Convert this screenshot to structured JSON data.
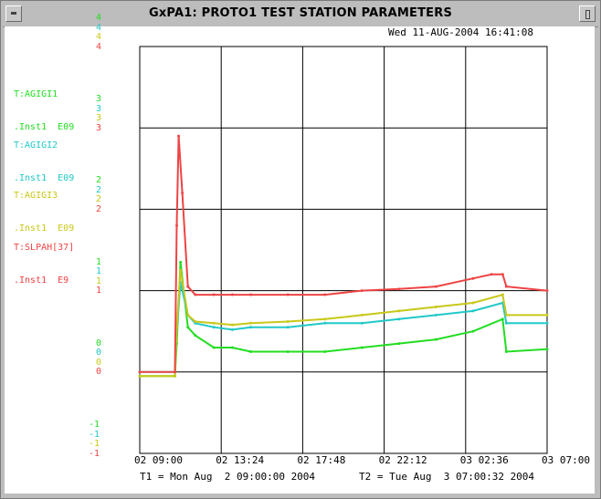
{
  "window": {
    "title": "GxPA1: PROTO1  TEST STATION PARAMETERS"
  },
  "timestamp": "Wed 11-AUG-2004 16:41:08",
  "legend": [
    {
      "name": "T:AGIGI1",
      "unit": ".Inst1  E09",
      "color": "#22dd22"
    },
    {
      "name": "T:AGIGI2",
      "unit": ".Inst1  E09",
      "color": "#22c8c8"
    },
    {
      "name": "T:AGIGI3",
      "unit": ".Inst1  E09",
      "color": "#c8c81a"
    },
    {
      "name": "T:SLPAH[37]",
      "unit": ".Inst1  E9",
      "color": "#ee4444"
    }
  ],
  "y_tick_labels": [
    "4",
    "3",
    "2",
    "1",
    "0",
    "-1"
  ],
  "x_tick_labels": [
    "02 09:00",
    "02 13:24",
    "02 17:48",
    "02 22:12",
    "03 02:36",
    "03 07:00"
  ],
  "footer": {
    "t1": "T1 = Mon Aug  2 09:00:00 2004",
    "t2": "T2 = Tue Aug  3 07:00:32 2004"
  },
  "chart_data": {
    "type": "line",
    "x_unit": "hours since T1",
    "xlim": [
      0,
      22
    ],
    "ylim": [
      -1,
      4
    ],
    "grid": true,
    "series": [
      {
        "name": "T:AGIGI1",
        "color": "#22dd22",
        "x": [
          0,
          1.9,
          2.0,
          2.2,
          2.6,
          3.0,
          4.0,
          5.0,
          6.0,
          8.0,
          10.0,
          12.0,
          14.0,
          16.0,
          18.0,
          19.6,
          19.8,
          22.0
        ],
        "y": [
          -0.05,
          -0.05,
          0.35,
          1.35,
          0.55,
          0.45,
          0.3,
          0.3,
          0.25,
          0.25,
          0.25,
          0.3,
          0.35,
          0.4,
          0.5,
          0.65,
          0.25,
          0.28
        ]
      },
      {
        "name": "T:AGIGI2",
        "color": "#22c8c8",
        "x": [
          0,
          1.9,
          2.0,
          2.2,
          2.6,
          3.0,
          4.0,
          5.0,
          6.0,
          8.0,
          10.0,
          12.0,
          14.0,
          16.0,
          18.0,
          19.6,
          19.8,
          22.0
        ],
        "y": [
          0.0,
          0.0,
          0.5,
          1.1,
          0.7,
          0.6,
          0.55,
          0.52,
          0.55,
          0.55,
          0.6,
          0.6,
          0.65,
          0.7,
          0.75,
          0.85,
          0.6,
          0.6
        ]
      },
      {
        "name": "T:AGIGI3",
        "color": "#c8c81a",
        "x": [
          0,
          1.9,
          2.0,
          2.2,
          2.6,
          3.0,
          4.0,
          5.0,
          6.0,
          8.0,
          10.0,
          12.0,
          14.0,
          16.0,
          18.0,
          19.6,
          19.8,
          22.0
        ],
        "y": [
          -0.05,
          -0.05,
          0.55,
          1.25,
          0.7,
          0.62,
          0.6,
          0.58,
          0.6,
          0.62,
          0.65,
          0.7,
          0.75,
          0.8,
          0.85,
          0.95,
          0.7,
          0.7
        ]
      },
      {
        "name": "T:SLPAH[37]",
        "color": "#ee4444",
        "x": [
          0,
          1.9,
          2.0,
          2.1,
          2.3,
          2.6,
          3.0,
          4.0,
          5.0,
          6.0,
          8.0,
          10.0,
          12.0,
          14.0,
          16.0,
          18.0,
          19.0,
          19.6,
          19.8,
          22.0
        ],
        "y": [
          0.0,
          0.0,
          1.8,
          2.9,
          2.2,
          1.05,
          0.95,
          0.95,
          0.95,
          0.95,
          0.95,
          0.95,
          1.0,
          1.02,
          1.05,
          1.15,
          1.2,
          1.2,
          1.05,
          1.0
        ]
      }
    ]
  }
}
